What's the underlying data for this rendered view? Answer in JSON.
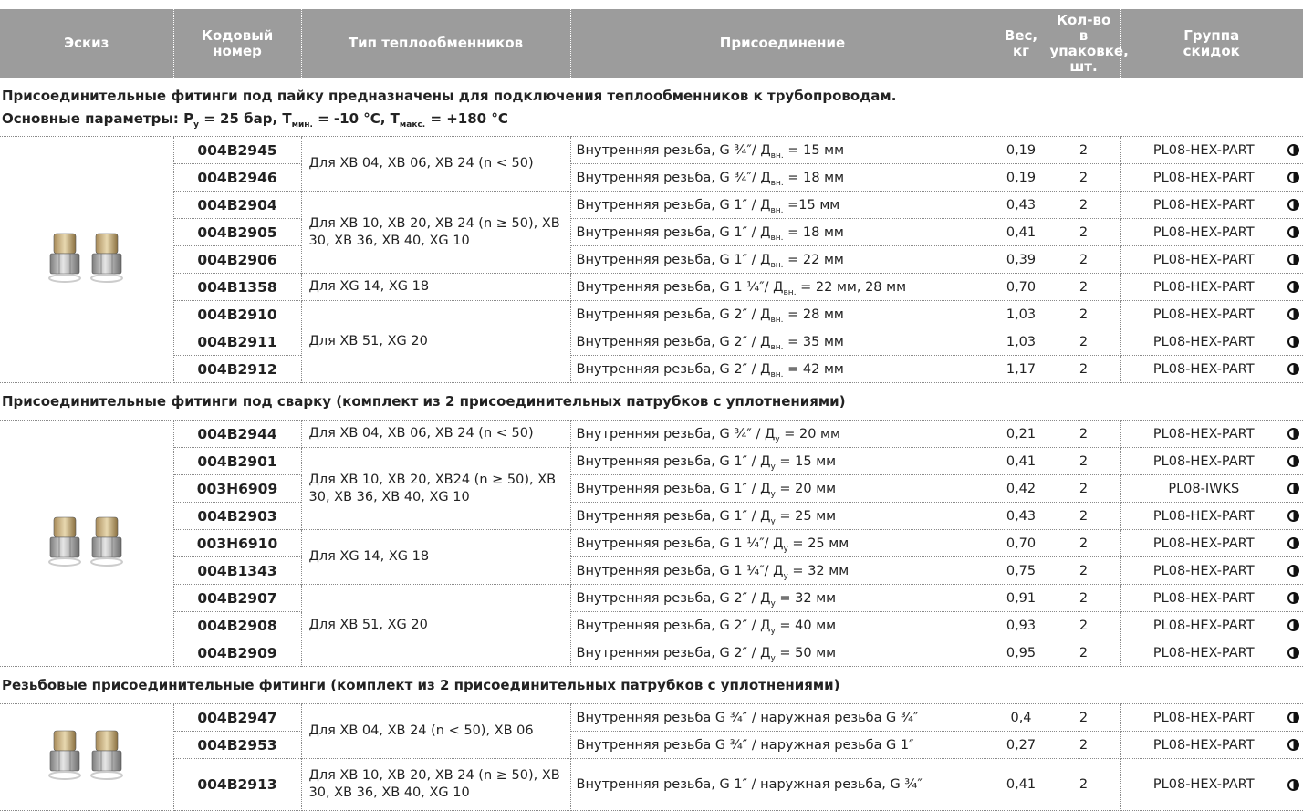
{
  "header": {
    "columns": [
      [
        "Эскиз"
      ],
      [
        "Кодовый",
        "номер"
      ],
      [
        "Тип теплообменников"
      ],
      [
        "Присоединение"
      ],
      [
        "Вес,",
        "кг"
      ],
      [
        "Кол-во",
        "в упаковке,",
        "шт."
      ],
      [
        "Группа",
        "скидок"
      ]
    ]
  },
  "sections": [
    {
      "title": [
        [
          "Присоединительные фитинги под пайку предназначены для подключения теплообменников к трубопроводам."
        ],
        [
          "Основные параметры: P",
          "у",
          " = 25 бар, T",
          "мин.",
          " = -10 °C, T",
          "макс.",
          " = +180 °C"
        ]
      ],
      "groups": [
        {
          "type": "Для XB 04, XB 06, XB 24 (n < 50)",
          "items": [
            {
              "code": "004B2945",
              "connection": [
                "Внутренняя резьба, G ¾″/ Д",
                "вн.",
                " = 15 мм"
              ],
              "weight": "0,19",
              "qty": 2,
              "group": "PL08-HEX-PART"
            },
            {
              "code": "004B2946",
              "connection": [
                "Внутренняя резьба, G ¾″/ Д",
                "вн.",
                " = 18 мм"
              ],
              "weight": "0,19",
              "qty": 2,
              "group": "PL08-HEX-PART"
            }
          ]
        },
        {
          "type": "Для XB 10, XB 20, XB 24 (n ≥ 50), XB 30, XB 36, XB 40, XG 10",
          "items": [
            {
              "code": "004B2904",
              "connection": [
                "Внутренняя резьба, G 1″ / Д",
                "вн.",
                " =15 мм"
              ],
              "weight": "0,43",
              "qty": 2,
              "group": "PL08-HEX-PART"
            },
            {
              "code": "004B2905",
              "connection": [
                "Внутренняя резьба, G 1″ / Д",
                "вн.",
                " = 18 мм"
              ],
              "weight": "0,41",
              "qty": 2,
              "group": "PL08-HEX-PART"
            },
            {
              "code": "004B2906",
              "connection": [
                "Внутренняя резьба, G 1″ / Д",
                "вн.",
                " = 22 мм"
              ],
              "weight": "0,39",
              "qty": 2,
              "group": "PL08-HEX-PART"
            }
          ]
        },
        {
          "type": "Для XG 14, XG 18",
          "items": [
            {
              "code": "004B1358",
              "connection": [
                "Внутренняя резьба, G 1 ¼″/ Д",
                "вн.",
                " = 22 мм, 28 мм"
              ],
              "weight": "0,70",
              "qty": 2,
              "group": "PL08-HEX-PART"
            }
          ]
        },
        {
          "type": "Для XB 51, XG 20",
          "items": [
            {
              "code": "004B2910",
              "connection": [
                "Внутренняя резьба, G 2″ / Д",
                "вн.",
                " = 28 мм"
              ],
              "weight": "1,03",
              "qty": 2,
              "group": "PL08-HEX-PART"
            },
            {
              "code": "004B2911",
              "connection": [
                "Внутренняя резьба, G 2″ / Д",
                "вн.",
                " = 35 мм"
              ],
              "weight": "1,03",
              "qty": 2,
              "group": "PL08-HEX-PART"
            },
            {
              "code": "004B2912",
              "connection": [
                "Внутренняя резьба, G 2″ / Д",
                "вн.",
                " = 42 мм"
              ],
              "weight": "1,17",
              "qty": 2,
              "group": "PL08-HEX-PART"
            }
          ]
        }
      ]
    },
    {
      "title": [
        [
          "Присоединительные фитинги под сварку (комплект из 2 присоединительных патрубков с уплотнениями)"
        ]
      ],
      "groups": [
        {
          "type": "Для XB 04, XB 06, XB 24 (n < 50)",
          "items": [
            {
              "code": "004B2944",
              "connection": [
                "Внутренняя резьба, G ¾″ / Д",
                "у",
                " = 20  мм"
              ],
              "weight": "0,21",
              "qty": 2,
              "group": "PL08-HEX-PART"
            }
          ]
        },
        {
          "type": "Для XB 10, XB 20, XB24 (n ≥ 50), XB 30, XB 36, XB 40, XG 10",
          "items": [
            {
              "code": "004B2901",
              "connection": [
                "Внутренняя резьба, G 1″ / Д",
                "у",
                " = 15 мм"
              ],
              "weight": "0,41",
              "qty": 2,
              "group": "PL08-HEX-PART"
            },
            {
              "code": "003H6909",
              "connection": [
                "Внутренняя резьба, G 1″ / Д",
                "у",
                " = 20 мм"
              ],
              "weight": "0,42",
              "qty": 2,
              "group": "PL08-IWKS"
            },
            {
              "code": "004B2903",
              "connection": [
                "Внутренняя резьба, G 1″ / Д",
                "у",
                " = 25 мм"
              ],
              "weight": "0,43",
              "qty": 2,
              "group": "PL08-HEX-PART"
            }
          ]
        },
        {
          "type": "Для XG 14, XG 18",
          "items": [
            {
              "code": "003H6910",
              "connection": [
                "Внутренняя резьба, G 1 ¼″/ Д",
                "у",
                " = 25 мм"
              ],
              "weight": "0,70",
              "qty": 2,
              "group": "PL08-HEX-PART"
            },
            {
              "code": "004B1343",
              "connection": [
                "Внутренняя резьба, G 1 ¼″/ Д",
                "у",
                " = 32 мм"
              ],
              "weight": "0,75",
              "qty": 2,
              "group": "PL08-HEX-PART"
            }
          ]
        },
        {
          "type": "Для XB 51, XG 20",
          "items": [
            {
              "code": "004B2907",
              "connection": [
                "Внутренняя резьба, G 2″ / Д",
                "у",
                " = 32 мм"
              ],
              "weight": "0,91",
              "qty": 2,
              "group": "PL08-HEX-PART"
            },
            {
              "code": "004B2908",
              "connection": [
                "Внутренняя резьба, G 2″ / Д",
                "у",
                " = 40 мм"
              ],
              "weight": "0,93",
              "qty": 2,
              "group": "PL08-HEX-PART"
            },
            {
              "code": "004B2909",
              "connection": [
                "Внутренняя резьба, G 2″ / Д",
                "у",
                " = 50 мм"
              ],
              "weight": "0,95",
              "qty": 2,
              "group": "PL08-HEX-PART"
            }
          ]
        }
      ]
    },
    {
      "title": [
        [
          "Резьбовые присоединительные фитинги (комплект из 2 присоединительных патрубков с уплотнениями)"
        ]
      ],
      "groups": [
        {
          "type": "Для XB 04, XB 24 (n < 50), XB 06",
          "items": [
            {
              "code": "004B2947",
              "connection": [
                "Внутренняя резьба G ¾″ / наружная резьба G ¾″"
              ],
              "weight": "0,4",
              "qty": 2,
              "group": "PL08-HEX-PART"
            },
            {
              "code": "004B2953",
              "connection": [
                "Внутренняя резьба G ¾″ / наружная резьба G 1″"
              ],
              "weight": "0,27",
              "qty": 2,
              "group": "PL08-HEX-PART"
            }
          ]
        },
        {
          "type": "Для XB 10, XB 20, XB 24 (n ≥ 50), XB 30, XB 36, XB 40, XG 10",
          "items": [
            {
              "code": "004B2913",
              "connection": [
                "Внутренняя резьба, G 1″ / наружная резьба, G ¾″"
              ],
              "weight": "0,41",
              "qty": 2,
              "group": "PL08-HEX-PART"
            }
          ]
        }
      ]
    }
  ]
}
